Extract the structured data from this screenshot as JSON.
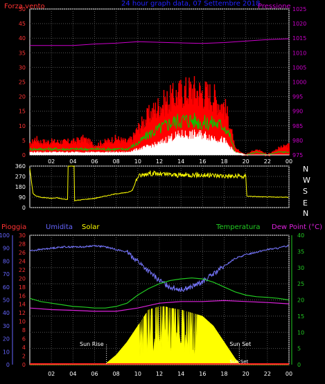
{
  "chart_data": [
    {
      "type": "line",
      "title": "24 hour graph data, 07 Settembre 2018",
      "ylabel_left": "Forza vento",
      "ylabel_right": "Pressione",
      "x_ticks": [
        "02",
        "04",
        "06",
        "08",
        "10",
        "12",
        "14",
        "16",
        "18",
        "20",
        "22",
        "00"
      ],
      "y_left": {
        "range": [
          0,
          50
        ],
        "ticks": [
          0,
          5,
          10,
          15,
          20,
          25,
          30,
          35,
          40,
          45,
          50
        ]
      },
      "y_right": {
        "range": [
          975,
          1025
        ],
        "ticks": [
          975,
          980,
          985,
          990,
          995,
          1000,
          1005,
          1010,
          1015,
          1020,
          1025
        ]
      },
      "grid": true,
      "series": [
        {
          "key": "gust",
          "color": "#ff0000",
          "x": [
            0,
            0.5,
            1,
            2,
            3,
            4,
            5,
            6,
            7,
            8,
            9,
            9.5,
            10,
            11,
            12,
            13,
            14,
            15,
            16,
            17,
            17.5,
            18,
            18.5,
            19,
            20,
            21,
            22,
            23,
            24
          ],
          "values": [
            3,
            5,
            4,
            4,
            4,
            4,
            5,
            3,
            4,
            5,
            4,
            5,
            8,
            12,
            15,
            17,
            19,
            20,
            19,
            18,
            16,
            15,
            10,
            2,
            0,
            2,
            0,
            2,
            3
          ]
        },
        {
          "key": "wind",
          "color": "#00cc00",
          "x": [
            0,
            1,
            2,
            3,
            4,
            5,
            6,
            7,
            8,
            9,
            10,
            11,
            12,
            13,
            14,
            15,
            16,
            17,
            18,
            18.5,
            19,
            20,
            21,
            22,
            23,
            24
          ],
          "values": [
            2,
            2,
            2,
            2,
            2,
            2,
            2,
            2,
            2,
            2,
            4,
            7,
            9,
            11,
            12,
            12,
            11,
            11,
            10,
            7,
            1,
            0,
            1,
            0,
            1,
            1
          ]
        },
        {
          "key": "wind_avg",
          "color": "#ffffff",
          "x": [
            0,
            1,
            2,
            3,
            4,
            5,
            6,
            7,
            8,
            9,
            10,
            11,
            12,
            13,
            14,
            15,
            16,
            17,
            18,
            19,
            20,
            24
          ],
          "values": [
            1,
            1,
            1,
            1,
            1,
            1,
            1,
            1,
            1,
            1,
            2,
            3,
            4,
            6,
            7,
            7,
            7,
            6,
            5,
            1,
            0,
            0
          ]
        },
        {
          "key": "pressure",
          "color": "#cc00cc",
          "axis": "right",
          "x": [
            0,
            2,
            4,
            6,
            8,
            10,
            12,
            14,
            16,
            18,
            20,
            22,
            24
          ],
          "values": [
            1012.5,
            1012.5,
            1012.5,
            1013,
            1013.3,
            1013.8,
            1013.6,
            1013.4,
            1013.2,
            1013.5,
            1014,
            1014.5,
            1014.8
          ]
        }
      ]
    },
    {
      "type": "line",
      "y_left": {
        "range": [
          0,
          360
        ],
        "ticks": [
          0,
          90,
          180,
          270,
          360
        ]
      },
      "compass_labels": [
        "N",
        "W",
        "S",
        "E",
        "N"
      ],
      "x_ticks": [
        "02",
        "04",
        "06",
        "08",
        "10",
        "12",
        "14",
        "16",
        "18",
        "20",
        "22",
        "00"
      ],
      "series": [
        {
          "key": "direction",
          "color": "#ffff00",
          "x": [
            0,
            0.3,
            0.6,
            1,
            1.5,
            2,
            2.5,
            3,
            3.5,
            3.51,
            4.1,
            4.11,
            5,
            6,
            7,
            8,
            9,
            9.5,
            10,
            11,
            12,
            13,
            14,
            15,
            16,
            17,
            18,
            19,
            20,
            20.1,
            21,
            22,
            23,
            24
          ],
          "values": [
            340,
            120,
            100,
            90,
            85,
            80,
            85,
            75,
            70,
            360,
            360,
            60,
            70,
            80,
            100,
            120,
            130,
            150,
            270,
            300,
            290,
            285,
            280,
            285,
            280,
            280,
            275,
            270,
            270,
            100,
            95,
            92,
            90,
            90
          ]
        }
      ]
    },
    {
      "type": "line",
      "labels": {
        "rain": "Pioggia",
        "humidity": "Umidita",
        "solar": "Solar",
        "temperature": "Temperatura",
        "dewpoint": "Dew Point (°C)"
      },
      "x_ticks": [
        "02",
        "04",
        "06",
        "08",
        "10",
        "12",
        "14",
        "16",
        "18",
        "20",
        "22",
        "00"
      ],
      "axis_humidity": {
        "range": [
          0,
          100
        ],
        "ticks": [
          0,
          10,
          20,
          30,
          40,
          50,
          60,
          70,
          80,
          90,
          100
        ]
      },
      "axis_rain": {
        "range": [
          0,
          30
        ],
        "ticks": [
          0,
          2,
          4,
          6,
          8,
          10,
          12,
          14,
          16,
          18,
          20,
          22,
          24,
          26,
          28,
          30
        ]
      },
      "axis_temperature": {
        "range": [
          0,
          40
        ],
        "ticks": [
          0,
          5,
          10,
          15,
          20,
          25,
          30,
          35,
          40
        ]
      },
      "annotations": {
        "sunrise": {
          "x": 7.1,
          "label": "Sun Rise"
        },
        "sunset": {
          "x": 19.4,
          "label": "Sun Set"
        }
      },
      "grid": true,
      "series": [
        {
          "key": "humidity",
          "color": "#7777ff",
          "axis": "humidity",
          "x": [
            0,
            1,
            2,
            3,
            4,
            5,
            6,
            7,
            8,
            9,
            10,
            11,
            12,
            13,
            14,
            15,
            16,
            17,
            18,
            19,
            20,
            21,
            22,
            23,
            24
          ],
          "values": [
            88,
            89,
            90,
            91,
            91,
            91,
            92,
            91,
            89,
            87,
            80,
            72,
            65,
            60,
            58,
            60,
            64,
            70,
            76,
            82,
            85,
            87,
            89,
            90,
            92
          ]
        },
        {
          "key": "temperature",
          "color": "#22cc22",
          "axis": "temperature",
          "x": [
            0,
            1,
            2,
            3,
            4,
            5,
            6,
            7,
            8,
            9,
            10,
            11,
            12,
            13,
            14,
            15,
            16,
            17,
            18,
            19,
            20,
            21,
            22,
            23,
            24
          ],
          "values": [
            20.5,
            19.5,
            19,
            18.5,
            18,
            17.8,
            17.5,
            17.5,
            18,
            19,
            21.5,
            23.5,
            25,
            26,
            26.5,
            26.8,
            26.5,
            25.5,
            24,
            22.5,
            21.5,
            21,
            20.8,
            20.5,
            20
          ]
        },
        {
          "key": "dewpoint",
          "color": "#dd22dd",
          "axis": "temperature",
          "x": [
            0,
            2,
            4,
            6,
            8,
            10,
            12,
            14,
            16,
            18,
            20,
            22,
            24
          ],
          "values": [
            17.5,
            17,
            16.8,
            16.5,
            16.5,
            17.5,
            19,
            19.5,
            19.5,
            19.8,
            19.5,
            19.2,
            18.8
          ]
        },
        {
          "key": "solar",
          "color": "#ffff00",
          "axis": "temperature",
          "fill": true,
          "x": [
            0,
            6.9,
            7.1,
            8,
            9,
            10,
            11,
            12,
            12.5,
            13,
            14,
            15,
            16,
            17,
            18,
            19,
            19.5,
            24
          ],
          "values": [
            0,
            0,
            0.5,
            3,
            7,
            12,
            17,
            18,
            18,
            17.5,
            17,
            16,
            15,
            12,
            7,
            2,
            0,
            0
          ]
        },
        {
          "key": "rain",
          "color": "#ff2222",
          "axis": "rain",
          "x": [
            0,
            24
          ],
          "values": [
            0,
            0
          ]
        }
      ]
    }
  ]
}
